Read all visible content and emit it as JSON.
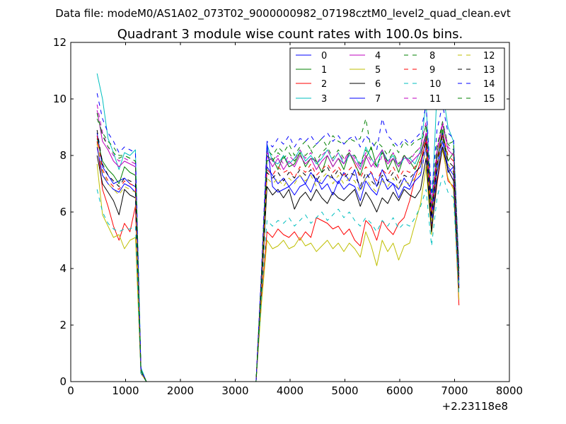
{
  "figure": {
    "suptitle": "Data file: modeM0/AS1A02_073T02_9000000982_07198cztM0_level2_quad_clean.evt"
  },
  "chart_data": {
    "type": "line",
    "title": "Quadrant 3 module wise count rates with 100.0s bins.",
    "xlabel": "",
    "ylabel": "",
    "x_offset_label": "+2.23118e8",
    "xlim": [
      0,
      8000
    ],
    "ylim": [
      0,
      12
    ],
    "xticks": [
      0,
      1000,
      2000,
      3000,
      4000,
      5000,
      6000,
      7000,
      8000
    ],
    "yticks": [
      0,
      2,
      4,
      6,
      8,
      10,
      12
    ],
    "grid": false,
    "legend_position": "top-right",
    "legend_columns": 4,
    "x": [
      480,
      580,
      680,
      780,
      880,
      980,
      1080,
      1180,
      1280,
      1380,
      1480,
      1580,
      1680,
      1780,
      1880,
      1980,
      2080,
      2180,
      2280,
      2380,
      2480,
      2580,
      2680,
      2780,
      2880,
      2980,
      3080,
      3180,
      3280,
      3380,
      3480,
      3580,
      3680,
      3780,
      3880,
      3980,
      4080,
      4180,
      4280,
      4380,
      4480,
      4580,
      4680,
      4780,
      4880,
      4980,
      5080,
      5180,
      5280,
      5380,
      5480,
      5580,
      5680,
      5780,
      5880,
      5980,
      6080,
      6180,
      6280,
      6380,
      6480,
      6580,
      6680,
      6780,
      6880,
      6980,
      7080
    ],
    "series": [
      {
        "name": "0",
        "color": "#0000ff",
        "dash": "solid",
        "values": [
          8.8,
          7.6,
          7.3,
          7.0,
          7.1,
          7.2,
          7.0,
          6.9,
          0.4,
          0.0,
          0.0,
          0.0,
          0.0,
          0.0,
          0.0,
          0.0,
          0.0,
          0.0,
          0.0,
          0.0,
          0.0,
          0.0,
          0.0,
          0.0,
          0.0,
          0.0,
          0.0,
          0.0,
          0.0,
          0.0,
          3.6,
          7.6,
          7.3,
          7.0,
          7.2,
          6.9,
          7.1,
          7.3,
          7.0,
          7.4,
          7.1,
          7.0,
          7.3,
          7.2,
          7.0,
          7.4,
          7.1,
          7.5,
          6.8,
          7.2,
          7.4,
          6.9,
          7.5,
          7.1,
          7.0,
          6.8,
          7.2,
          6.9,
          7.4,
          7.6,
          8.6,
          5.8,
          7.6,
          8.8,
          7.4,
          7.6,
          3.5
        ]
      },
      {
        "name": "1",
        "color": "#008000",
        "dash": "solid",
        "values": [
          8.6,
          7.8,
          7.5,
          7.3,
          7.0,
          7.6,
          7.4,
          7.3,
          0.4,
          0.0,
          0.0,
          0.0,
          0.0,
          0.0,
          0.0,
          0.0,
          0.0,
          0.0,
          0.0,
          0.0,
          0.0,
          0.0,
          0.0,
          0.0,
          0.0,
          0.0,
          0.0,
          0.0,
          0.0,
          0.0,
          3.7,
          7.8,
          7.9,
          7.5,
          8.0,
          7.6,
          7.7,
          8.1,
          7.6,
          7.9,
          7.8,
          7.4,
          8.0,
          7.6,
          7.9,
          7.5,
          8.1,
          7.7,
          7.3,
          7.9,
          8.3,
          7.6,
          8.2,
          7.5,
          7.9,
          7.4,
          8.0,
          7.8,
          7.5,
          8.0,
          8.7,
          6.0,
          7.9,
          8.9,
          7.8,
          8.1,
          3.6
        ]
      },
      {
        "name": "2",
        "color": "#ff0000",
        "dash": "solid",
        "values": [
          8.5,
          6.8,
          6.2,
          5.5,
          5.0,
          5.6,
          5.3,
          6.2,
          0.3,
          0.0,
          0.0,
          0.0,
          0.0,
          0.0,
          0.0,
          0.0,
          0.0,
          0.0,
          0.0,
          0.0,
          0.0,
          0.0,
          0.0,
          0.0,
          0.0,
          0.0,
          0.0,
          0.0,
          0.0,
          0.0,
          3.0,
          5.3,
          5.1,
          5.4,
          5.2,
          5.1,
          5.3,
          5.0,
          5.3,
          5.1,
          5.8,
          5.7,
          5.6,
          5.4,
          5.5,
          5.2,
          5.4,
          5.0,
          4.8,
          5.7,
          5.5,
          5.0,
          5.7,
          5.4,
          5.2,
          5.6,
          5.8,
          6.4,
          7.2,
          7.8,
          8.5,
          5.4,
          7.0,
          8.3,
          7.1,
          6.9,
          2.7
        ]
      },
      {
        "name": "3",
        "color": "#00bfbf",
        "dash": "solid",
        "values": [
          10.9,
          10.0,
          8.6,
          8.1,
          7.5,
          8.1,
          8.0,
          8.2,
          0.5,
          0.0,
          0.0,
          0.0,
          0.0,
          0.0,
          0.0,
          0.0,
          0.0,
          0.0,
          0.0,
          0.0,
          0.0,
          0.0,
          0.0,
          0.0,
          0.0,
          0.0,
          0.0,
          0.0,
          0.0,
          0.0,
          3.8,
          8.4,
          7.8,
          7.7,
          8.0,
          7.7,
          7.9,
          8.2,
          7.8,
          8.0,
          7.7,
          7.9,
          8.2,
          7.8,
          8.1,
          7.7,
          8.0,
          8.0,
          7.6,
          8.3,
          7.9,
          7.6,
          8.2,
          7.8,
          8.0,
          7.6,
          7.9,
          7.9,
          7.7,
          8.2,
          9.9,
          6.0,
          10.3,
          10.3,
          9.0,
          8.5,
          4.0
        ]
      },
      {
        "name": "4",
        "color": "#bf00bf",
        "dash": "solid",
        "values": [
          9.6,
          8.5,
          8.2,
          7.8,
          7.6,
          7.8,
          7.7,
          7.6,
          0.4,
          0.0,
          0.0,
          0.0,
          0.0,
          0.0,
          0.0,
          0.0,
          0.0,
          0.0,
          0.0,
          0.0,
          0.0,
          0.0,
          0.0,
          0.0,
          0.0,
          0.0,
          0.0,
          0.0,
          0.0,
          0.0,
          3.9,
          8.0,
          7.6,
          7.9,
          7.5,
          7.8,
          7.6,
          8.0,
          7.7,
          7.9,
          7.5,
          7.8,
          8.0,
          7.6,
          7.9,
          7.7,
          8.1,
          7.8,
          7.5,
          8.0,
          7.6,
          7.9,
          8.2,
          7.7,
          7.9,
          7.6,
          8.0,
          7.7,
          7.9,
          8.1,
          8.8,
          6.0,
          8.1,
          9.1,
          8.2,
          8.0,
          3.8
        ]
      },
      {
        "name": "5",
        "color": "#bfbf00",
        "dash": "solid",
        "values": [
          7.7,
          5.9,
          5.5,
          5.1,
          5.2,
          4.7,
          5.0,
          5.1,
          0.3,
          0.0,
          0.0,
          0.0,
          0.0,
          0.0,
          0.0,
          0.0,
          0.0,
          0.0,
          0.0,
          0.0,
          0.0,
          0.0,
          0.0,
          0.0,
          0.0,
          0.0,
          0.0,
          0.0,
          0.0,
          0.0,
          2.8,
          5.0,
          4.7,
          4.8,
          5.0,
          4.7,
          4.8,
          5.1,
          4.8,
          4.9,
          4.6,
          4.8,
          5.0,
          4.7,
          4.9,
          4.6,
          4.9,
          4.7,
          4.4,
          5.3,
          4.8,
          4.1,
          5.0,
          4.6,
          4.9,
          4.3,
          4.8,
          4.9,
          5.6,
          6.3,
          7.6,
          5.2,
          7.4,
          8.2,
          7.2,
          6.8,
          2.9
        ]
      },
      {
        "name": "6",
        "color": "#000000",
        "dash": "solid",
        "values": [
          8.0,
          7.0,
          6.7,
          6.4,
          5.9,
          6.8,
          6.6,
          6.5,
          0.3,
          0.0,
          0.0,
          0.0,
          0.0,
          0.0,
          0.0,
          0.0,
          0.0,
          0.0,
          0.0,
          0.0,
          0.0,
          0.0,
          0.0,
          0.0,
          0.0,
          0.0,
          0.0,
          0.0,
          0.0,
          0.0,
          3.3,
          6.9,
          6.6,
          6.8,
          6.5,
          6.8,
          6.1,
          6.5,
          6.7,
          6.4,
          6.8,
          6.5,
          6.3,
          6.7,
          6.5,
          6.4,
          6.6,
          6.8,
          6.2,
          6.7,
          6.4,
          6.0,
          6.5,
          6.3,
          6.7,
          6.4,
          6.8,
          6.6,
          6.5,
          6.8,
          7.9,
          5.3,
          7.1,
          8.3,
          7.5,
          7.1,
          3.3
        ]
      },
      {
        "name": "7",
        "color": "#0000ff",
        "dash": "solid",
        "values": [
          8.3,
          7.3,
          7.0,
          6.8,
          6.7,
          7.0,
          6.9,
          6.7,
          0.4,
          0.0,
          0.0,
          0.0,
          0.0,
          0.0,
          0.0,
          0.0,
          0.0,
          0.0,
          0.0,
          0.0,
          0.0,
          0.0,
          0.0,
          0.0,
          0.0,
          0.0,
          0.0,
          0.0,
          0.0,
          0.0,
          3.5,
          8.4,
          6.9,
          6.7,
          6.8,
          6.9,
          6.6,
          6.9,
          7.0,
          6.7,
          7.2,
          6.8,
          7.0,
          6.6,
          7.1,
          6.8,
          7.0,
          6.9,
          6.4,
          7.1,
          6.8,
          6.6,
          7.2,
          6.8,
          7.0,
          6.5,
          6.9,
          6.8,
          7.1,
          7.3,
          8.3,
          5.6,
          7.4,
          8.5,
          7.6,
          7.3,
          3.4
        ]
      },
      {
        "name": "8",
        "color": "#008000",
        "dash": "dashed",
        "values": [
          9.3,
          8.8,
          8.5,
          8.3,
          8.0,
          8.0,
          7.9,
          7.8,
          0.4,
          0.0,
          0.0,
          0.0,
          0.0,
          0.0,
          0.0,
          0.0,
          0.0,
          0.0,
          0.0,
          0.0,
          0.0,
          0.0,
          0.0,
          0.0,
          0.0,
          0.0,
          0.0,
          0.0,
          0.0,
          0.0,
          3.9,
          8.2,
          8.0,
          8.3,
          8.1,
          8.4,
          8.0,
          8.3,
          8.5,
          8.2,
          8.4,
          8.6,
          8.3,
          8.7,
          8.5,
          8.4,
          8.6,
          8.5,
          8.6,
          9.3,
          8.2,
          8.5,
          8.3,
          8.0,
          8.4,
          8.1,
          8.5,
          8.3,
          8.5,
          8.6,
          9.0,
          6.2,
          8.4,
          9.0,
          8.4,
          8.5,
          3.9
        ]
      },
      {
        "name": "9",
        "color": "#ff0000",
        "dash": "dashed",
        "values": [
          8.7,
          7.5,
          7.1,
          6.9,
          6.8,
          7.1,
          7.0,
          6.9,
          0.4,
          0.0,
          0.0,
          0.0,
          0.0,
          0.0,
          0.0,
          0.0,
          0.0,
          0.0,
          0.0,
          0.0,
          0.0,
          0.0,
          0.0,
          0.0,
          0.0,
          0.0,
          0.0,
          0.0,
          0.0,
          0.0,
          3.7,
          7.5,
          7.3,
          7.6,
          7.4,
          7.5,
          7.2,
          7.6,
          7.4,
          7.7,
          7.3,
          7.5,
          7.7,
          7.4,
          7.6,
          7.3,
          7.5,
          7.7,
          7.2,
          7.6,
          7.4,
          7.1,
          7.5,
          7.3,
          7.6,
          7.2,
          7.5,
          7.4,
          7.6,
          7.8,
          8.6,
          5.9,
          7.8,
          8.8,
          8.0,
          7.8,
          3.7
        ]
      },
      {
        "name": "10",
        "color": "#00bfbf",
        "dash": "dashed",
        "values": [
          6.8,
          6.0,
          5.6,
          5.4,
          5.3,
          5.4,
          5.4,
          5.5,
          0.3,
          0.0,
          0.0,
          0.0,
          0.0,
          0.0,
          0.0,
          0.0,
          0.0,
          0.0,
          0.0,
          0.0,
          0.0,
          0.0,
          0.0,
          0.0,
          0.0,
          0.0,
          0.0,
          0.0,
          0.0,
          0.0,
          3.1,
          5.7,
          5.5,
          5.7,
          5.6,
          5.8,
          5.5,
          5.7,
          5.9,
          5.6,
          5.8,
          6.0,
          5.7,
          5.9,
          6.1,
          5.8,
          6.0,
          5.7,
          5.5,
          5.8,
          5.6,
          5.3,
          5.7,
          5.5,
          5.8,
          5.4,
          5.6,
          5.5,
          5.8,
          6.2,
          6.8,
          4.8,
          6.5,
          7.3,
          6.7,
          6.5,
          3.1
        ]
      },
      {
        "name": "11",
        "color": "#bf00bf",
        "dash": "dashed",
        "values": [
          9.8,
          8.8,
          8.3,
          8.0,
          7.8,
          7.9,
          7.8,
          7.7,
          0.4,
          0.0,
          0.0,
          0.0,
          0.0,
          0.0,
          0.0,
          0.0,
          0.0,
          0.0,
          0.0,
          0.0,
          0.0,
          0.0,
          0.0,
          0.0,
          0.0,
          0.0,
          0.0,
          0.0,
          0.0,
          0.0,
          3.9,
          8.1,
          7.8,
          8.0,
          7.7,
          8.0,
          7.8,
          8.2,
          7.9,
          8.1,
          7.7,
          8.0,
          8.2,
          7.8,
          8.1,
          7.8,
          8.2,
          7.9,
          7.6,
          8.1,
          7.8,
          7.5,
          8.0,
          7.7,
          8.1,
          7.6,
          8.0,
          7.8,
          8.1,
          8.3,
          9.2,
          6.3,
          8.2,
          9.2,
          8.3,
          8.1,
          3.9
        ]
      },
      {
        "name": "12",
        "color": "#bfbf00",
        "dash": "dashed",
        "values": [
          8.4,
          7.4,
          7.0,
          6.8,
          6.6,
          6.9,
          6.8,
          6.7,
          0.3,
          0.0,
          0.0,
          0.0,
          0.0,
          0.0,
          0.0,
          0.0,
          0.0,
          0.0,
          0.0,
          0.0,
          0.0,
          0.0,
          0.0,
          0.0,
          0.0,
          0.0,
          0.0,
          0.0,
          0.0,
          0.0,
          3.5,
          7.2,
          7.0,
          7.2,
          6.9,
          7.2,
          7.0,
          7.3,
          7.1,
          7.3,
          6.9,
          7.2,
          7.4,
          7.0,
          7.3,
          7.0,
          7.2,
          7.1,
          6.7,
          7.2,
          6.9,
          6.7,
          7.1,
          6.9,
          7.2,
          6.8,
          7.1,
          7.0,
          7.2,
          7.4,
          8.2,
          5.6,
          7.6,
          8.6,
          7.7,
          7.4,
          3.5
        ]
      },
      {
        "name": "13",
        "color": "#000000",
        "dash": "dashed",
        "values": [
          8.9,
          7.7,
          7.3,
          7.1,
          6.9,
          7.2,
          7.1,
          7.0,
          0.4,
          0.0,
          0.0,
          0.0,
          0.0,
          0.0,
          0.0,
          0.0,
          0.0,
          0.0,
          0.0,
          0.0,
          0.0,
          0.0,
          0.0,
          0.0,
          0.0,
          0.0,
          0.0,
          0.0,
          0.0,
          0.0,
          3.6,
          7.4,
          7.2,
          7.4,
          7.1,
          7.4,
          7.2,
          7.5,
          7.3,
          7.5,
          7.1,
          7.4,
          7.6,
          7.2,
          7.5,
          7.2,
          7.4,
          7.3,
          6.9,
          7.4,
          7.1,
          6.9,
          7.3,
          7.1,
          7.4,
          7.0,
          7.3,
          7.2,
          7.4,
          7.6,
          8.5,
          5.8,
          7.7,
          8.7,
          7.8,
          7.6,
          3.6
        ]
      },
      {
        "name": "14",
        "color": "#0000ff",
        "dash": "dashed",
        "values": [
          10.2,
          9.3,
          8.8,
          8.5,
          8.1,
          8.3,
          8.2,
          8.1,
          0.4,
          0.0,
          0.0,
          0.0,
          0.0,
          0.0,
          0.0,
          0.0,
          0.0,
          0.0,
          0.0,
          0.0,
          0.0,
          0.0,
          0.0,
          0.0,
          0.0,
          0.0,
          0.0,
          0.0,
          0.0,
          0.0,
          4.0,
          8.5,
          8.3,
          8.6,
          8.4,
          8.7,
          8.3,
          8.6,
          8.5,
          8.7,
          8.4,
          8.6,
          8.8,
          8.5,
          8.7,
          8.4,
          8.6,
          8.7,
          8.3,
          8.7,
          8.5,
          8.2,
          9.3,
          8.7,
          8.5,
          8.3,
          8.6,
          8.4,
          8.6,
          8.8,
          9.8,
          6.6,
          8.9,
          9.8,
          8.8,
          8.6,
          4.0
        ]
      },
      {
        "name": "15",
        "color": "#008000",
        "dash": "dashed",
        "values": [
          9.5,
          8.7,
          8.3,
          8.1,
          7.9,
          8.0,
          7.9,
          7.8,
          0.4,
          0.0,
          0.0,
          0.0,
          0.0,
          0.0,
          0.0,
          0.0,
          0.0,
          0.0,
          0.0,
          0.0,
          0.0,
          0.0,
          0.0,
          0.0,
          0.0,
          0.0,
          0.0,
          0.0,
          0.0,
          0.0,
          3.8,
          8.0,
          7.8,
          8.1,
          7.9,
          8.1,
          7.8,
          8.1,
          8.0,
          8.2,
          7.8,
          8.1,
          8.3,
          7.9,
          8.2,
          7.9,
          8.1,
          8.0,
          7.7,
          8.2,
          7.9,
          7.6,
          8.1,
          7.8,
          8.1,
          7.7,
          8.0,
          7.9,
          8.1,
          8.3,
          9.1,
          6.2,
          8.3,
          9.2,
          8.4,
          8.2,
          3.8
        ]
      }
    ]
  }
}
